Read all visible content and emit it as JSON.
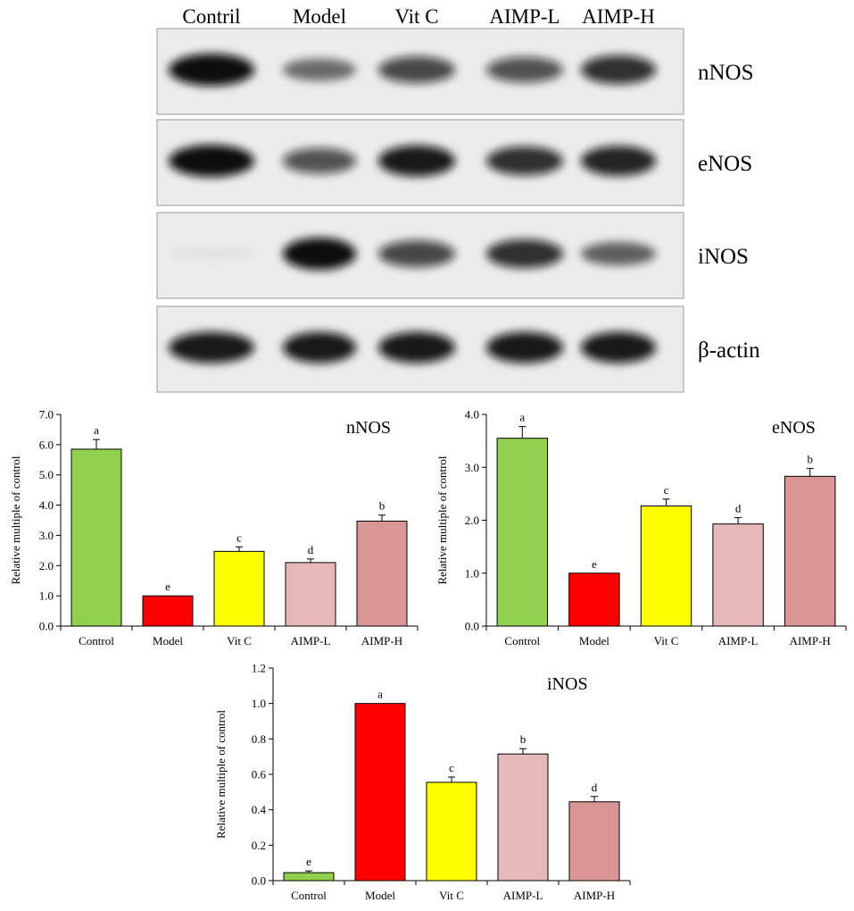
{
  "blot": {
    "lanes": [
      "Contril",
      "Model",
      "Vit C",
      "AIMP-L",
      "AIMP-H"
    ],
    "rows": [
      {
        "label": "nNOS",
        "intensity": [
          1.0,
          0.55,
          0.75,
          0.7,
          0.85
        ]
      },
      {
        "label": "eNOS",
        "intensity": [
          1.0,
          0.7,
          0.95,
          0.85,
          0.9
        ]
      },
      {
        "label": "iNOS",
        "intensity": [
          0.05,
          1.0,
          0.75,
          0.85,
          0.6
        ]
      },
      {
        "label": "β-actin",
        "intensity": [
          0.95,
          0.95,
          0.95,
          0.95,
          0.95
        ]
      }
    ]
  },
  "chart_data": [
    {
      "type": "bar",
      "title": "nNOS",
      "ylabel": "Relative multiple of control",
      "categories": [
        "Control",
        "Model",
        "Vit C",
        "AIMP-L",
        "AIMP-H"
      ],
      "values": [
        5.85,
        1.0,
        2.47,
        2.1,
        3.47
      ],
      "errors": [
        0.32,
        0.0,
        0.15,
        0.12,
        0.2
      ],
      "letters": [
        "a",
        "e",
        "c",
        "d",
        "b"
      ],
      "colors": [
        "#92d050",
        "#ff0000",
        "#ffff00",
        "#e6b8b7",
        "#da9694"
      ],
      "ylim": [
        0,
        7
      ],
      "yticks": [
        "0.0",
        "1.0",
        "2.0",
        "3.0",
        "4.0",
        "5.0",
        "6.0",
        "7.0"
      ],
      "grid": false
    },
    {
      "type": "bar",
      "title": "eNOS",
      "ylabel": "Relative multiple of control",
      "categories": [
        "Control",
        "Model",
        "Vit C",
        "AIMP-L",
        "AIMP-H"
      ],
      "values": [
        3.55,
        1.0,
        2.27,
        1.93,
        2.83
      ],
      "errors": [
        0.22,
        0.0,
        0.13,
        0.12,
        0.15
      ],
      "letters": [
        "a",
        "e",
        "c",
        "d",
        "b"
      ],
      "colors": [
        "#92d050",
        "#ff0000",
        "#ffff00",
        "#e6b8b7",
        "#da9694"
      ],
      "ylim": [
        0,
        4
      ],
      "yticks": [
        "0.0",
        "1.0",
        "2.0",
        "3.0",
        "4.0"
      ],
      "grid": false
    },
    {
      "type": "bar",
      "title": "iNOS",
      "ylabel": "Relative multiple of control",
      "categories": [
        "Control",
        "Model",
        "Vit C",
        "AIMP-L",
        "AIMP-H"
      ],
      "values": [
        0.045,
        1.0,
        0.555,
        0.715,
        0.445
      ],
      "errors": [
        0.01,
        0.0,
        0.03,
        0.03,
        0.03
      ],
      "letters": [
        "e",
        "a",
        "c",
        "b",
        "d"
      ],
      "colors": [
        "#92d050",
        "#ff0000",
        "#ffff00",
        "#e6b8b7",
        "#da9694"
      ],
      "ylim": [
        0,
        1.2
      ],
      "yticks": [
        "0.0",
        "0.2",
        "0.4",
        "0.6",
        "0.8",
        "1.0",
        "1.2"
      ],
      "grid": false
    }
  ]
}
